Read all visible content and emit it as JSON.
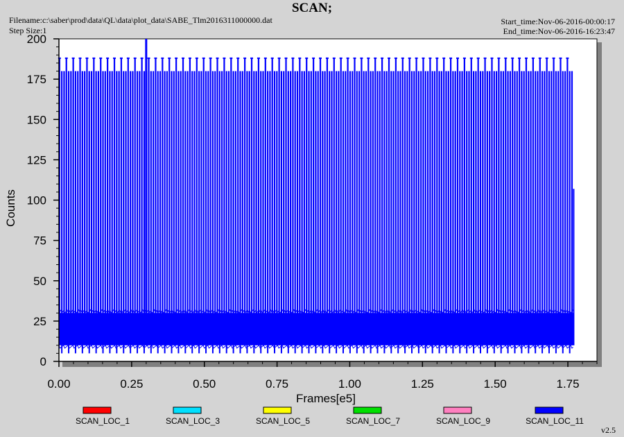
{
  "header": {
    "title": "SCAN;",
    "filename": "Filename:c:\\saber\\prod\\data\\QL\\data\\plot_data\\SABE_Tlm2016311000000.dat",
    "step_size": "Step Size:1",
    "start_time": "Start_time:Nov-06-2016-00:00:17",
    "end_time": "End_time:Nov-06-2016-16:23:47",
    "version": "v2.5"
  },
  "colors": {
    "background": "#d4d4d4",
    "plot_area": "#ffffff",
    "shadow": "#808080",
    "main_series": "#0000ff"
  },
  "chart_data": {
    "type": "line",
    "title": "SCAN;",
    "xlabel": "Frames[e5]",
    "ylabel": "Counts",
    "xlim": [
      0,
      1.85
    ],
    "ylim": [
      0,
      200
    ],
    "x_ticks": [
      "0.00",
      "0.25",
      "0.50",
      "0.75",
      "1.00",
      "1.25",
      "1.50",
      "1.75"
    ],
    "y_ticks": [
      "0",
      "25",
      "50",
      "75",
      "100",
      "125",
      "150",
      "175",
      "200"
    ],
    "grid": false,
    "legend_position": "bottom",
    "data_x_range": [
      0,
      1.77
    ],
    "series": [
      {
        "name": "SCAN_LOC_1",
        "color": "#ff0000",
        "values": []
      },
      {
        "name": "SCAN_LOC_3",
        "color": "#00e0ff",
        "values": []
      },
      {
        "name": "SCAN_LOC_5",
        "color": "#ffff00",
        "values": []
      },
      {
        "name": "SCAN_LOC_7",
        "color": "#00e000",
        "values": []
      },
      {
        "name": "SCAN_LOC_9",
        "color": "#ff80c0",
        "values": []
      },
      {
        "name": "SCAN_LOC_11",
        "color": "#0000ff",
        "baseline_band": [
          10,
          30
        ],
        "spike_top_values": [
          188,
          180
        ],
        "peak": {
          "x": 0.3,
          "y": 200
        },
        "dips": [
          0,
          3,
          5
        ]
      }
    ]
  }
}
